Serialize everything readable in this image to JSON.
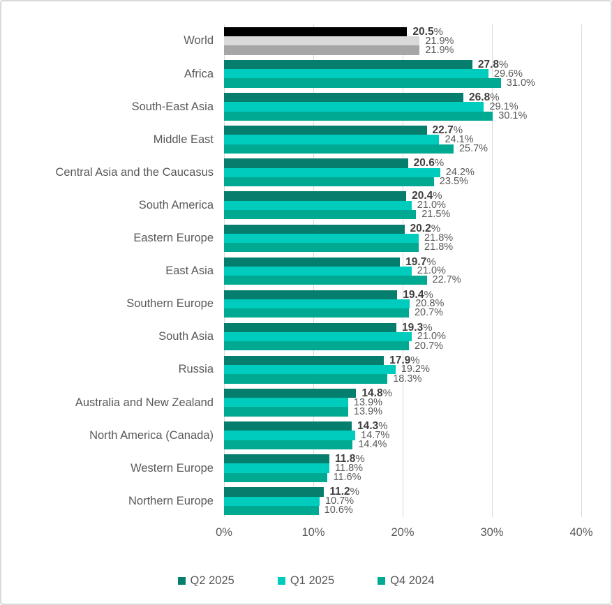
{
  "chart_data": {
    "type": "bar",
    "orientation": "horizontal",
    "title": "",
    "categories": [
      "World",
      "Africa",
      "South-East Asia",
      "Middle East",
      "Central Asia and the Caucasus",
      "South America",
      "Eastern Europe",
      "East Asia",
      "Southern Europe",
      "South Asia",
      "Russia",
      "Australia and New Zealand",
      "North America (Canada)",
      "Western Europe",
      "Northern Europe"
    ],
    "series": [
      {
        "name": "Q2 2025",
        "color": "#067E6E",
        "world_color": "#000000",
        "label_style": "bold",
        "values": [
          20.5,
          27.8,
          26.8,
          22.7,
          20.6,
          20.4,
          20.2,
          19.7,
          19.4,
          19.3,
          17.9,
          14.8,
          14.3,
          11.8,
          11.2
        ]
      },
      {
        "name": "Q1 2025",
        "color": "#00CCBE",
        "world_color": "#D9D9D9",
        "label_style": "normal",
        "values": [
          21.9,
          29.6,
          29.1,
          24.1,
          24.2,
          21.0,
          21.8,
          21.0,
          20.8,
          21.0,
          19.2,
          13.9,
          14.7,
          11.8,
          10.7
        ]
      },
      {
        "name": "Q4 2024",
        "color": "#00A992",
        "world_color": "#A6A6A6",
        "label_style": "normal",
        "values": [
          21.9,
          31.0,
          30.1,
          25.7,
          23.5,
          21.5,
          21.8,
          22.7,
          20.7,
          20.7,
          18.3,
          13.9,
          14.4,
          11.6,
          10.6
        ]
      }
    ],
    "value_label_format": "{value}%",
    "x_axis": {
      "min": 0,
      "max": 40,
      "ticks": [
        "0%",
        "10%",
        "20%",
        "30%",
        "40%"
      ]
    },
    "grid": true,
    "gridline_color": "#D9D9D9",
    "legend_position": "bottom"
  },
  "styles": {
    "card_border_color": "#D9D9D9",
    "category_label_color": "#595959",
    "value_label_color": "#595959",
    "bold_value_color": "#3F3F3F",
    "tick_label_color": "#595959",
    "legend_text_color": "#595959"
  }
}
